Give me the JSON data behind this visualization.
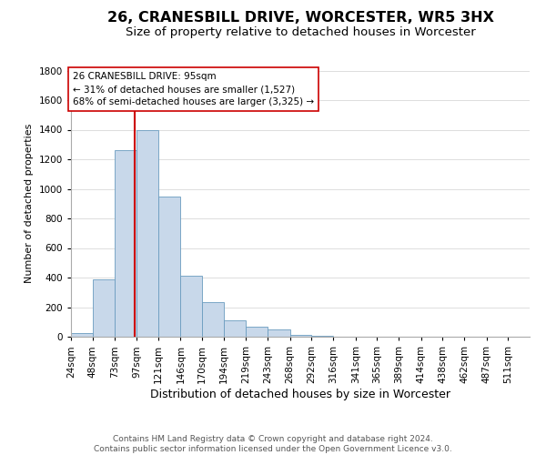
{
  "title": "26, CRANESBILL DRIVE, WORCESTER, WR5 3HX",
  "subtitle": "Size of property relative to detached houses in Worcester",
  "xlabel": "Distribution of detached houses by size in Worcester",
  "ylabel": "Number of detached properties",
  "bin_labels": [
    "24sqm",
    "48sqm",
    "73sqm",
    "97sqm",
    "121sqm",
    "146sqm",
    "170sqm",
    "194sqm",
    "219sqm",
    "243sqm",
    "268sqm",
    "292sqm",
    "316sqm",
    "341sqm",
    "365sqm",
    "389sqm",
    "414sqm",
    "438sqm",
    "462sqm",
    "487sqm",
    "511sqm"
  ],
  "bar_values": [
    25,
    385,
    1260,
    1400,
    950,
    415,
    235,
    110,
    70,
    50,
    10,
    5,
    2,
    1,
    0,
    0,
    0,
    0,
    0,
    0,
    0
  ],
  "bar_color": "#c8d8ea",
  "bar_edge_color": "#6a9cbf",
  "property_line_x": 95,
  "property_line_color": "#cc0000",
  "annotation_text": "26 CRANESBILL DRIVE: 95sqm\n← 31% of detached houses are smaller (1,527)\n68% of semi-detached houses are larger (3,325) →",
  "annotation_box_color": "#ffffff",
  "annotation_box_edge": "#cc0000",
  "ylim": [
    0,
    1800
  ],
  "yticks": [
    0,
    200,
    400,
    600,
    800,
    1000,
    1200,
    1400,
    1600,
    1800
  ],
  "footer_line1": "Contains HM Land Registry data © Crown copyright and database right 2024.",
  "footer_line2": "Contains public sector information licensed under the Open Government Licence v3.0.",
  "title_fontsize": 11.5,
  "subtitle_fontsize": 9.5,
  "xlabel_fontsize": 9,
  "ylabel_fontsize": 8,
  "tick_fontsize": 7.5,
  "footer_fontsize": 6.5,
  "bin_edges": [
    24,
    48,
    73,
    97,
    121,
    146,
    170,
    194,
    219,
    243,
    268,
    292,
    316,
    341,
    365,
    389,
    414,
    438,
    462,
    487,
    511,
    535
  ],
  "grid_color": "#d0d0d0",
  "annotation_fontsize": 7.5
}
